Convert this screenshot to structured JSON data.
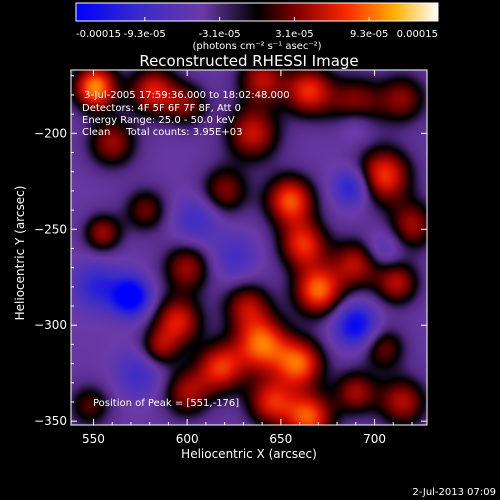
{
  "chart_data": {
    "type": "heatmap",
    "title": "Reconstructed RHESSI Image",
    "xlabel": "Heliocentric X (arcsec)",
    "ylabel": "Heliocentric Y (arcsec)",
    "xlim": [
      538,
      728
    ],
    "ylim": [
      -352,
      -167
    ],
    "x_ticks": [
      550,
      600,
      650,
      700
    ],
    "y_ticks": [
      -200,
      -250,
      -300,
      -350
    ],
    "colorbar": {
      "min": -0.00015,
      "max": 0.00015,
      "tick_values": [
        -0.00015,
        -9.3e-05,
        -3.1e-05,
        3.1e-05,
        9.3e-05,
        0.00015
      ],
      "tick_labels": [
        "-0.00015",
        "-9.3e-05",
        "-3.1e-05",
        "3.1e-05",
        "9.3e-05",
        "0.00015"
      ],
      "unit_label": "(photons cm⁻² s⁻¹ asec⁻²)"
    },
    "info_lines": [
      "3-Jul-2005 17:59:36.000 to 18:02:48.000",
      "Detectors: 4F 5F 6F 7F 8F, Att 0",
      "Energy Range: 25.0 - 50.0 keV",
      "Clean     Total counts: 3.95E+03"
    ],
    "peak_text": "Position of Peak = [551,-176]",
    "blobs": [
      {
        "x": 551,
        "y": -176,
        "v": 1.0,
        "s": 8
      },
      {
        "x": 560,
        "y": -205,
        "v": 0.55,
        "s": 9
      },
      {
        "x": 582,
        "y": -178,
        "v": 0.7,
        "s": 9
      },
      {
        "x": 600,
        "y": -185,
        "v": 0.45,
        "s": 8
      },
      {
        "x": 640,
        "y": -172,
        "v": 0.6,
        "s": 9
      },
      {
        "x": 665,
        "y": -178,
        "v": 0.75,
        "s": 9
      },
      {
        "x": 690,
        "y": -185,
        "v": 0.55,
        "s": 10
      },
      {
        "x": 715,
        "y": -182,
        "v": 0.5,
        "s": 9
      },
      {
        "x": 635,
        "y": -200,
        "v": 0.65,
        "s": 10
      },
      {
        "x": 620,
        "y": -230,
        "v": 0.5,
        "s": 9
      },
      {
        "x": 655,
        "y": -235,
        "v": 0.85,
        "s": 9
      },
      {
        "x": 705,
        "y": -222,
        "v": 0.8,
        "s": 10
      },
      {
        "x": 720,
        "y": -248,
        "v": 0.55,
        "s": 9
      },
      {
        "x": 578,
        "y": -240,
        "v": 0.45,
        "s": 8
      },
      {
        "x": 555,
        "y": -252,
        "v": 0.55,
        "s": 7
      },
      {
        "x": 600,
        "y": -270,
        "v": 0.55,
        "s": 9
      },
      {
        "x": 662,
        "y": -258,
        "v": 0.75,
        "s": 9
      },
      {
        "x": 690,
        "y": -268,
        "v": 0.6,
        "s": 9
      },
      {
        "x": 712,
        "y": -278,
        "v": 0.6,
        "s": 8
      },
      {
        "x": 632,
        "y": -290,
        "v": 0.55,
        "s": 9
      },
      {
        "x": 670,
        "y": -282,
        "v": 0.9,
        "s": 9
      },
      {
        "x": 595,
        "y": -298,
        "v": 0.7,
        "s": 9
      },
      {
        "x": 640,
        "y": -310,
        "v": 0.9,
        "s": 10
      },
      {
        "x": 618,
        "y": -322,
        "v": 0.75,
        "s": 9
      },
      {
        "x": 660,
        "y": -320,
        "v": 0.85,
        "s": 9
      },
      {
        "x": 585,
        "y": -312,
        "v": 0.5,
        "s": 7
      },
      {
        "x": 600,
        "y": -335,
        "v": 0.55,
        "s": 9
      },
      {
        "x": 645,
        "y": -340,
        "v": 0.7,
        "s": 9
      },
      {
        "x": 665,
        "y": -348,
        "v": 0.85,
        "s": 9
      },
      {
        "x": 690,
        "y": -335,
        "v": 0.55,
        "s": 8
      },
      {
        "x": 715,
        "y": -340,
        "v": 0.6,
        "s": 9
      },
      {
        "x": 705,
        "y": -312,
        "v": 0.45,
        "s": 8
      },
      {
        "x": 548,
        "y": -342,
        "v": 0.4,
        "s": 8
      },
      {
        "x": 570,
        "y": -285,
        "v": -0.9,
        "s": 7
      },
      {
        "x": 552,
        "y": -280,
        "v": -0.45,
        "s": 9
      },
      {
        "x": 690,
        "y": -300,
        "v": -0.7,
        "s": 8
      },
      {
        "x": 688,
        "y": -228,
        "v": -0.55,
        "s": 7
      },
      {
        "x": 605,
        "y": -245,
        "v": -0.35,
        "s": 9
      },
      {
        "x": 625,
        "y": -265,
        "v": -0.3,
        "s": 9
      },
      {
        "x": 690,
        "y": -195,
        "v": -0.3,
        "s": 7
      },
      {
        "x": 575,
        "y": -325,
        "v": -0.35,
        "s": 9
      },
      {
        "x": 705,
        "y": -260,
        "v": -0.3,
        "s": 7
      }
    ]
  },
  "footer": {
    "timestamp": "2-Jul-2013 07:09"
  }
}
